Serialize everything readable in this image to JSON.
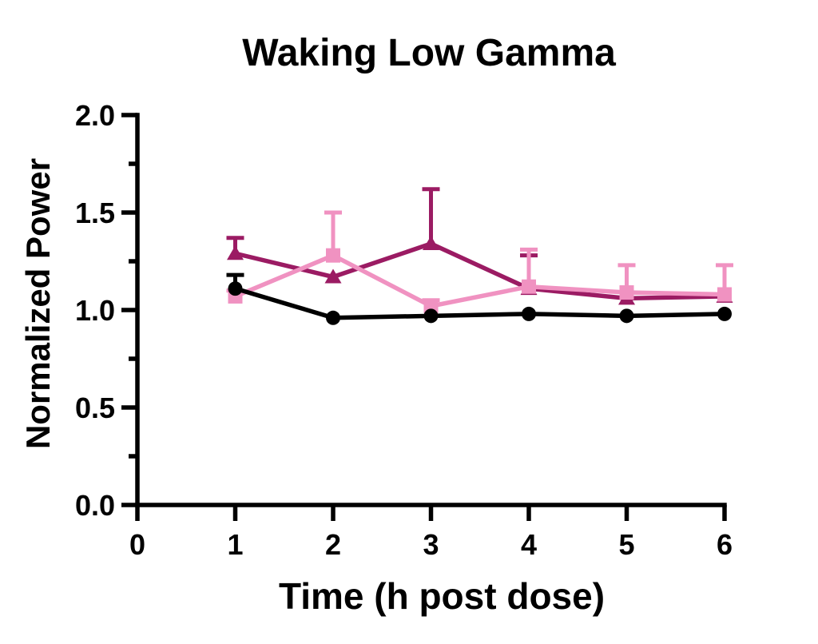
{
  "page": {
    "background": "#FFFFFF"
  },
  "chart_data": {
    "type": "line",
    "title": "Waking Low Gamma",
    "xlabel": "Time (h post dose)",
    "ylabel": "Normalized Power",
    "x": [
      1,
      2,
      3,
      4,
      5,
      6
    ],
    "xlim": [
      0,
      6
    ],
    "ylim": [
      0.0,
      2.0
    ],
    "x_tick_values": [
      0,
      1,
      2,
      3,
      4,
      5,
      6
    ],
    "x_tick_labels": [
      "0",
      "1",
      "2",
      "3",
      "4",
      "5",
      "6"
    ],
    "y_tick_values": [
      0.0,
      0.5,
      1.0,
      1.5,
      2.0
    ],
    "y_tick_labels": [
      "0.0",
      "0.5",
      "1.0",
      "1.5",
      "2.0"
    ],
    "y_minor_tick_values": [
      0.25,
      0.75,
      1.25,
      1.75
    ],
    "grid": false,
    "legend": "none",
    "error_bars": "upper-only",
    "axis_color": "#000000",
    "series": [
      {
        "name": "dark-magenta-triangle-series",
        "marker": "triangle",
        "color": "#9B1B63",
        "values": [
          1.29,
          1.17,
          1.34,
          1.11,
          1.06,
          1.07
        ],
        "err_up": [
          0.08,
          0,
          0.28,
          0.17,
          0,
          0
        ]
      },
      {
        "name": "pink-square-series",
        "marker": "square",
        "color": "#F092C1",
        "values": [
          1.07,
          1.28,
          1.02,
          1.12,
          1.09,
          1.08
        ],
        "err_up": [
          0.03,
          0.22,
          0.03,
          0.19,
          0.14,
          0.15
        ]
      },
      {
        "name": "black-circle-series",
        "marker": "circle",
        "color": "#000000",
        "values": [
          1.11,
          0.96,
          0.97,
          0.98,
          0.97,
          0.98
        ],
        "err_up": [
          0.07,
          0,
          0,
          0,
          0,
          0
        ]
      }
    ]
  }
}
